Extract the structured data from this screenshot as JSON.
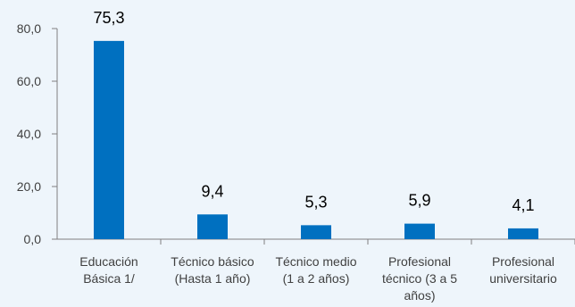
{
  "chart_data": {
    "type": "bar",
    "categories": [
      [
        "Educación",
        "Básica 1/"
      ],
      [
        "Técnico básico",
        "(Hasta 1 año)"
      ],
      [
        "Técnico medio",
        "(1 a 2 años)"
      ],
      [
        "Profesional",
        "técnico (3 a 5",
        "años)"
      ],
      [
        "Profesional",
        "universitario"
      ]
    ],
    "values": [
      75.3,
      9.4,
      5.3,
      5.9,
      4.1
    ],
    "data_labels": [
      "75,3",
      "9,4",
      "5,3",
      "5,9",
      "4,1"
    ],
    "y_ticks": [
      "0,0",
      "20,0",
      "40,0",
      "60,0",
      "80,0"
    ],
    "y_tick_values": [
      0,
      20,
      40,
      60,
      80
    ],
    "ylim": [
      0,
      80
    ],
    "grid": false,
    "bar_color": "#0070c0",
    "background": "#eef5fb"
  }
}
